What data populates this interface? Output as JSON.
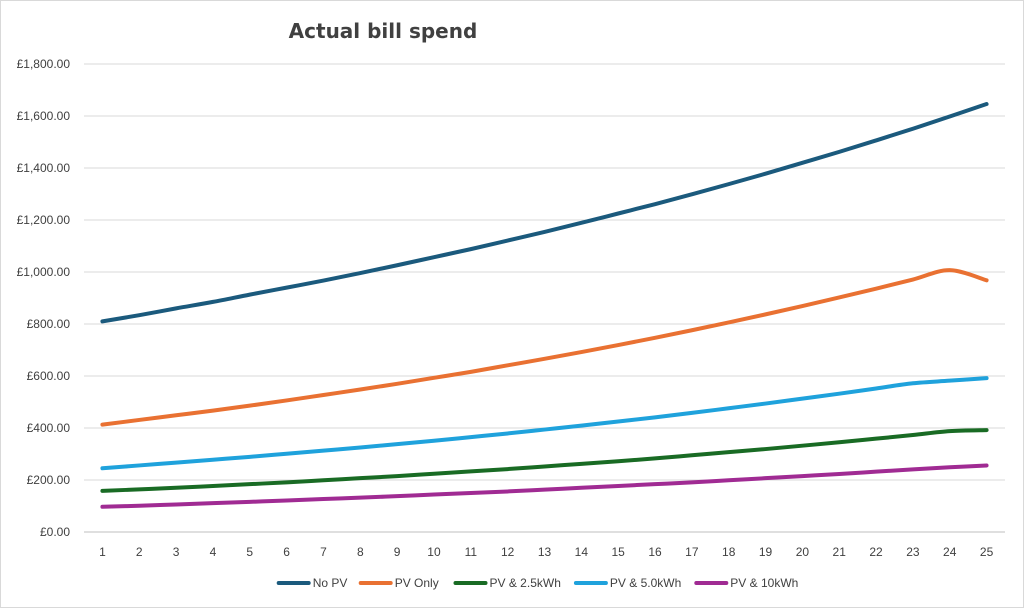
{
  "chart_data": {
    "type": "line",
    "title": "Actual bill spend",
    "xlabel": "",
    "ylabel": "",
    "ylim": [
      0,
      1800
    ],
    "y_ticks": [
      "£0.00",
      "£200.00",
      "£400.00",
      "£600.00",
      "£800.00",
      "£1,000.00",
      "£1,200.00",
      "£1,400.00",
      "£1,600.00",
      "£1,800.00"
    ],
    "y_tick_values": [
      0,
      200,
      400,
      600,
      800,
      1000,
      1200,
      1400,
      1600,
      1800
    ],
    "categories": [
      "1",
      "2",
      "3",
      "4",
      "5",
      "6",
      "7",
      "8",
      "9",
      "10",
      "11",
      "12",
      "13",
      "14",
      "15",
      "16",
      "17",
      "18",
      "19",
      "20",
      "21",
      "22",
      "23",
      "24",
      "25"
    ],
    "grid": true,
    "legend_position": "bottom",
    "series": [
      {
        "name": "No PV",
        "color": "#1b5a7d",
        "values": [
          810,
          834,
          860,
          885,
          913,
          940,
          967,
          996,
          1026,
          1057,
          1088,
          1121,
          1154,
          1189,
          1225,
          1261,
          1299,
          1338,
          1378,
          1420,
          1462,
          1506,
          1551,
          1598,
          1646
        ]
      },
      {
        "name": "PV Only",
        "color": "#e97132",
        "values": [
          413,
          431,
          449,
          467,
          486,
          506,
          527,
          548,
          570,
          593,
          616,
          641,
          666,
          692,
          719,
          747,
          776,
          806,
          837,
          869,
          902,
          936,
          971,
          1007,
          968
        ]
      },
      {
        "name": "PV & 2.5kWh",
        "color": "#196b24",
        "values": [
          158,
          164,
          170,
          177,
          184,
          191,
          199,
          207,
          215,
          224,
          233,
          242,
          252,
          262,
          272,
          283,
          295,
          307,
          319,
          332,
          345,
          359,
          373,
          388,
          392
        ]
      },
      {
        "name": "PV & 5.0kWh",
        "color": "#1fa2dc",
        "values": [
          245,
          256,
          267,
          278,
          289,
          301,
          313,
          325,
          338,
          351,
          365,
          379,
          394,
          409,
          425,
          441,
          458,
          476,
          494,
          513,
          532,
          552,
          572,
          582,
          592
        ]
      },
      {
        "name": "PV & 10kWh",
        "color": "#a02b93",
        "values": [
          97,
          101,
          106,
          111,
          116,
          121,
          127,
          132,
          138,
          144,
          150,
          156,
          163,
          170,
          177,
          184,
          191,
          199,
          207,
          215,
          223,
          232,
          241,
          249,
          256
        ]
      }
    ]
  }
}
